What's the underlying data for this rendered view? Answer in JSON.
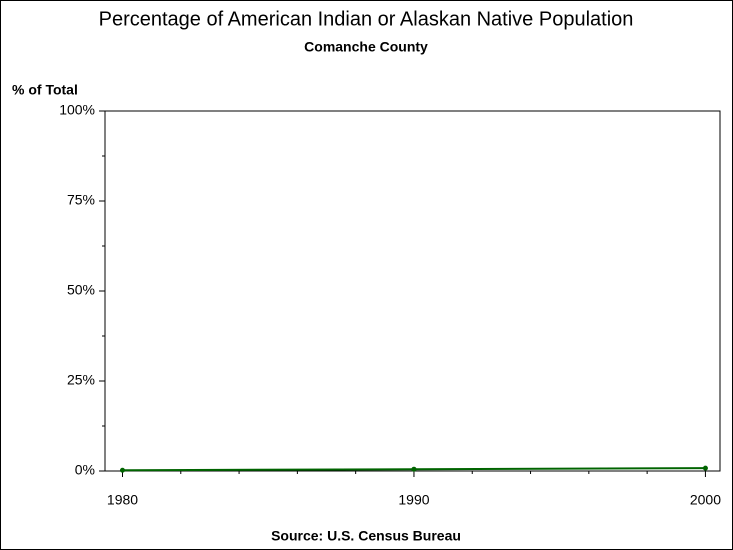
{
  "chart_data": {
    "type": "line",
    "title": "Percentage of American Indian or Alaskan Native Population",
    "subtitle": "Comanche County",
    "y_label": "% of Total",
    "source": "Source: U.S. Census Bureau",
    "x": [
      1980,
      1990,
      2000
    ],
    "series": [
      {
        "name": "Comanche County",
        "color": "#006400",
        "values": [
          0.2,
          0.5,
          0.8
        ]
      }
    ],
    "xlim": [
      1979.4,
      2000.5
    ],
    "xticks": [
      1980,
      1990,
      2000
    ],
    "ylim": [
      0,
      100
    ],
    "yticks": [
      {
        "value": 0,
        "label": "0%"
      },
      {
        "value": 25,
        "label": "25%"
      },
      {
        "value": 50,
        "label": "50%"
      },
      {
        "value": 75,
        "label": "75%"
      },
      {
        "value": 100,
        "label": "100%"
      }
    ]
  }
}
